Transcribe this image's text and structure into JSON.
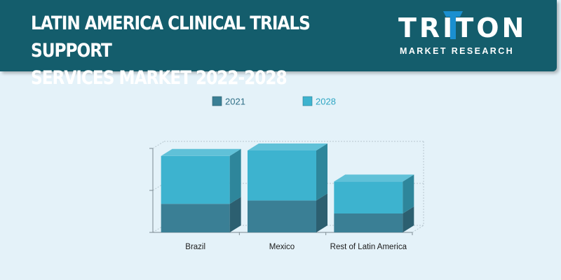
{
  "header": {
    "title_line1": "LATIN AMERICA CLINICAL TRIALS SUPPORT",
    "title_line2": "SERVICES MARKET 2022-2028"
  },
  "logo": {
    "name": "TRITON",
    "tagline": "MARKET RESEARCH",
    "accent_color": "#1a8fd0"
  },
  "colors": {
    "background": "#e4f2f9",
    "header": "#145d6c",
    "series_2021": "#3a7f95",
    "series_2028": "#3db3cf"
  },
  "chart_data": {
    "type": "bar",
    "stacked": true,
    "three_d": true,
    "categories": [
      "Brazil",
      "Mexico",
      "Rest of Latin America"
    ],
    "series": [
      {
        "name": "2021",
        "values": [
          0.68,
          0.76,
          0.45
        ],
        "color": "#3a7f95"
      },
      {
        "name": "2028",
        "values": [
          1.14,
          1.19,
          0.76
        ],
        "color": "#3db3cf"
      }
    ],
    "ylim": [
      0,
      2
    ],
    "title": "",
    "xlabel": "",
    "ylabel": "",
    "legend_position": "top",
    "grid": true
  }
}
